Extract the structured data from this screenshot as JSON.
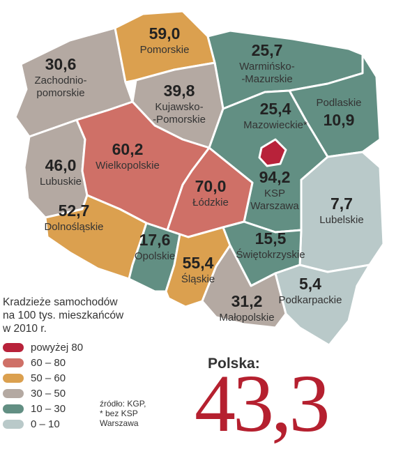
{
  "colors": {
    "above_80": "#b8223a",
    "r60_80": "#cf7067",
    "r50_60": "#dba04f",
    "r30_50": "#b4a9a2",
    "r10_30": "#628f83",
    "r0_10": "#b9c9c9"
  },
  "regions": [
    {
      "id": "zachodniopomorskie",
      "value": "30,6",
      "name_lines": [
        "Zachodnio-",
        "pomorskie"
      ],
      "class": "r30_50"
    },
    {
      "id": "pomorskie",
      "value": "59,0",
      "name_lines": [
        "Pomorskie"
      ],
      "class": "r50_60"
    },
    {
      "id": "warminsko-mazurskie",
      "value": "25,7",
      "name_lines": [
        "Warmińsko-",
        "-Mazurskie"
      ],
      "class": "r10_30"
    },
    {
      "id": "podlaskie",
      "value": "10,9",
      "name_lines": [
        "Podlaskie"
      ],
      "class": "r10_30"
    },
    {
      "id": "kujawsko-pomorskie",
      "value": "39,8",
      "name_lines": [
        "Kujawsko-",
        "-Pomorskie"
      ],
      "class": "r30_50"
    },
    {
      "id": "mazowieckie",
      "value": "25,4",
      "name_lines": [
        "Mazowieckie*"
      ],
      "class": "r10_30"
    },
    {
      "id": "ksp-warszawa",
      "value": "94,2",
      "name_lines": [
        "KSP",
        "Warszawa"
      ],
      "class": "above_80"
    },
    {
      "id": "lubuskie",
      "value": "46,0",
      "name_lines": [
        "Lubuskie"
      ],
      "class": "r30_50"
    },
    {
      "id": "wielkopolskie",
      "value": "60,2",
      "name_lines": [
        "Wielkopolskie"
      ],
      "class": "r60_80"
    },
    {
      "id": "lodzkie",
      "value": "70,0",
      "name_lines": [
        "Łódzkie"
      ],
      "class": "r60_80"
    },
    {
      "id": "lubelskie",
      "value": "7,7",
      "name_lines": [
        "Lubelskie"
      ],
      "class": "r0_10"
    },
    {
      "id": "dolnoslaskie",
      "value": "52,7",
      "name_lines": [
        "Dolnośląskie"
      ],
      "class": "r50_60"
    },
    {
      "id": "opolskie",
      "value": "17,6",
      "name_lines": [
        "Opolskie"
      ],
      "class": "r10_30"
    },
    {
      "id": "slaskie",
      "value": "55,4",
      "name_lines": [
        "Śląskie"
      ],
      "class": "r50_60"
    },
    {
      "id": "swietokrzyskie",
      "value": "15,5",
      "name_lines": [
        "Świętokrzyskie"
      ],
      "class": "r10_30"
    },
    {
      "id": "malopolskie",
      "value": "31,2",
      "name_lines": [
        "Małopolskie"
      ],
      "class": "r30_50"
    },
    {
      "id": "podkarpackie",
      "value": "5,4",
      "name_lines": [
        "Podkarpackie"
      ],
      "class": "r0_10"
    }
  ],
  "legend": {
    "title_lines": [
      "Kradzieże samochodów",
      "na 100 tys. mieszkańców",
      "w 2010 r."
    ],
    "items": [
      {
        "label": "powyżej 80",
        "color": "#b8223a"
      },
      {
        "label": "60 – 80",
        "color": "#cf7067"
      },
      {
        "label": "50 – 60",
        "color": "#dba04f"
      },
      {
        "label": "30 – 50",
        "color": "#b4a9a2"
      },
      {
        "label": "10 – 30",
        "color": "#628f83"
      },
      {
        "label": "0 – 10",
        "color": "#b9c9c9"
      }
    ]
  },
  "source": "źródło: KGP,\n* bez KSP\nWarszawa",
  "total": {
    "label": "Polska:",
    "value": "43,3"
  }
}
